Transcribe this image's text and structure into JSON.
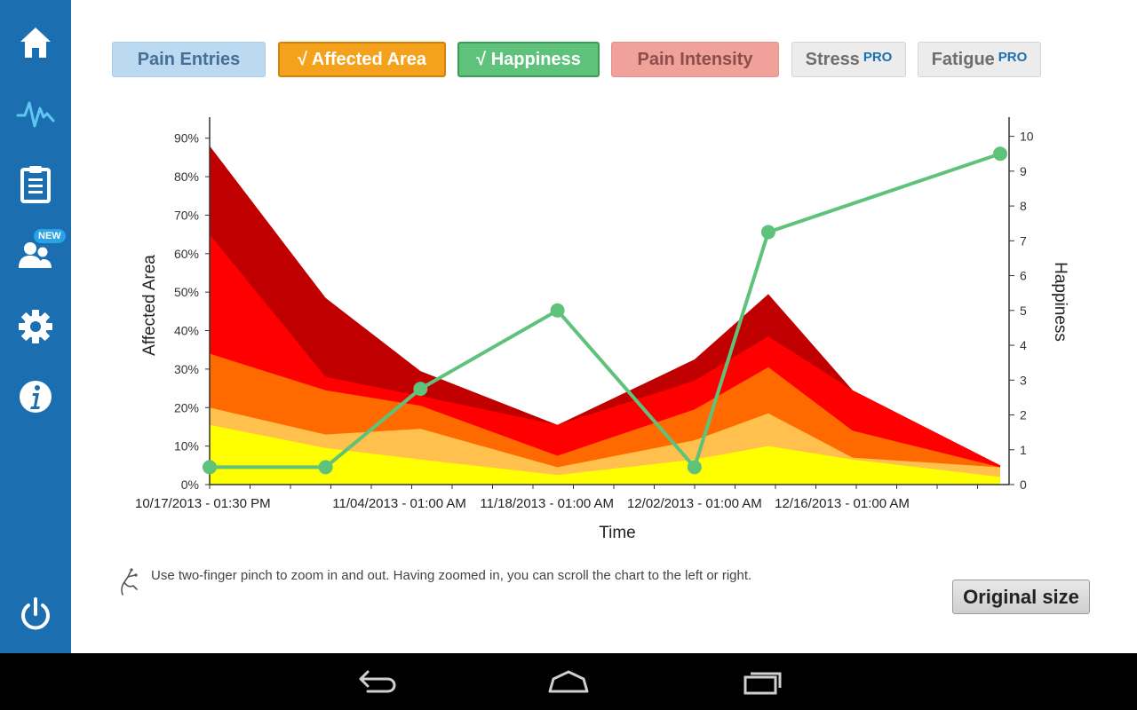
{
  "filters": {
    "pain_entries": "Pain Entries",
    "affected_area": "√ Affected Area",
    "happiness": "√ Happiness",
    "pain_intensity": "Pain Intensity",
    "stress": "Stress",
    "fatigue": "Fatigue",
    "pro_badge": "PRO"
  },
  "sidebar": {
    "items": [
      {
        "icon": "home-icon"
      },
      {
        "icon": "pulse-icon"
      },
      {
        "icon": "clipboard-icon"
      },
      {
        "icon": "users-icon",
        "badge": "NEW"
      },
      {
        "icon": "gear-icon"
      },
      {
        "icon": "info-icon"
      },
      {
        "icon": "power-icon"
      }
    ]
  },
  "hint": {
    "text": "Use two-finger pinch to zoom in and out. Having zoomed in, you can scroll the chart to the left or right."
  },
  "original_size_label": "Original size",
  "colors": {
    "sidebar": "#1b6fb0",
    "happiness_line": "#5ec27b",
    "area_layers": [
      "#ffff00",
      "#ffc04d",
      "#ff6a00",
      "#ff0000",
      "#c00000"
    ]
  },
  "chart_data": {
    "type": "area",
    "xlabel": "Time",
    "ylabel": "Affected Area",
    "y2label": "Happiness",
    "x_tick_labels": [
      "10/17/2013 - 01:30 PM",
      "11/04/2013 - 01:00 AM",
      "11/18/2013 - 01:00 AM",
      "12/02/2013 - 01:00 AM",
      "12/16/2013 - 01:00 AM"
    ],
    "x": [
      "2013-10-17",
      "2013-10-28",
      "2013-11-06",
      "2013-11-19",
      "2013-12-02",
      "2013-12-09",
      "2013-12-17",
      "2013-12-31"
    ],
    "ylim": [
      0,
      95
    ],
    "y_ticks": [
      "0%",
      "10%",
      "20%",
      "30%",
      "40%",
      "50%",
      "60%",
      "70%",
      "80%",
      "90%"
    ],
    "y2lim": [
      0,
      10.5
    ],
    "y2_ticks": [
      "0",
      "1",
      "2",
      "3",
      "4",
      "5",
      "6",
      "7",
      "8",
      "9",
      "10"
    ],
    "area_series": [
      {
        "values": [
          15.5,
          9.5,
          6.5,
          2.5,
          6.5,
          10,
          6.5,
          2
        ]
      },
      {
        "values": [
          20,
          13,
          14.5,
          4.5,
          11.5,
          18.5,
          7,
          4.5
        ]
      },
      {
        "values": [
          34,
          24.5,
          20.5,
          7.5,
          19.5,
          30.5,
          14,
          4.5
        ]
      },
      {
        "values": [
          65,
          28,
          23,
          15.5,
          27,
          38.5,
          24.5,
          5
        ]
      },
      {
        "values": [
          88,
          48.5,
          29.5,
          15.5,
          32.5,
          49.5,
          24.5,
          5
        ]
      }
    ],
    "line_series": {
      "axis": "right",
      "x": [
        "2013-10-17",
        "2013-10-28",
        "2013-11-06",
        "2013-11-19",
        "2013-12-02",
        "2013-12-09",
        "2013-12-31"
      ],
      "values": [
        0.5,
        0.5,
        2.75,
        5,
        0.5,
        7.25,
        9.5
      ]
    }
  }
}
